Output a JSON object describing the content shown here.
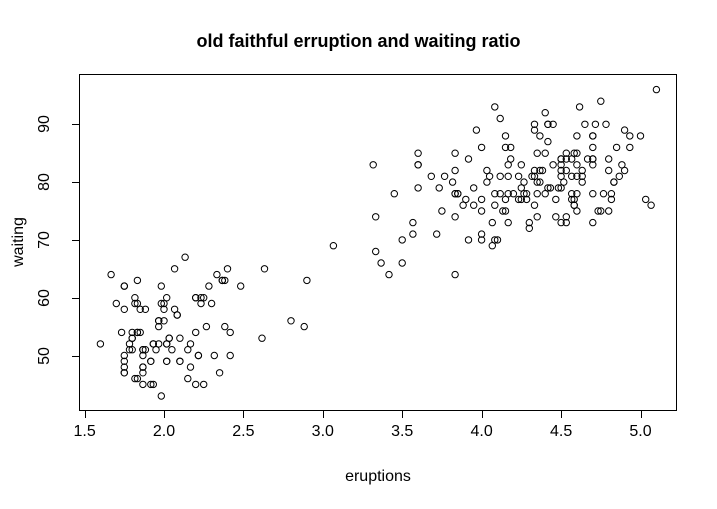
{
  "figure": {
    "background": "#ffffff",
    "foreground": "#000000"
  },
  "chart_data": {
    "type": "scatter",
    "title": "old faithful erruption and waiting ratio",
    "xlabel": "eruptions",
    "ylabel": "waiting",
    "x_ticks": [
      1.5,
      2.0,
      2.5,
      3.0,
      3.5,
      4.0,
      4.5,
      5.0
    ],
    "x_tick_labels": [
      "1.5",
      "2.0",
      "2.5",
      "3.0",
      "3.5",
      "4.0",
      "4.5",
      "5.0"
    ],
    "y_ticks": [
      50,
      60,
      70,
      80,
      90
    ],
    "y_tick_labels": [
      "50",
      "60",
      "70",
      "80",
      "90"
    ],
    "xlim": [
      1.465,
      5.23
    ],
    "ylim": [
      40.4,
      98.7
    ],
    "grid": false,
    "legend": null,
    "marker": {
      "shape": "open-circle",
      "radius_px": 3.2,
      "stroke_px": 1,
      "color": "#000000"
    },
    "points": [
      [
        3.6,
        79
      ],
      [
        1.8,
        54
      ],
      [
        3.333,
        74
      ],
      [
        2.283,
        62
      ],
      [
        4.533,
        85
      ],
      [
        2.883,
        55
      ],
      [
        4.7,
        88
      ],
      [
        3.6,
        85
      ],
      [
        1.95,
        51
      ],
      [
        4.35,
        85
      ],
      [
        1.833,
        54
      ],
      [
        3.917,
        84
      ],
      [
        4.2,
        78
      ],
      [
        1.75,
        47
      ],
      [
        4.7,
        83
      ],
      [
        2.167,
        52
      ],
      [
        1.75,
        62
      ],
      [
        4.8,
        84
      ],
      [
        1.6,
        52
      ],
      [
        4.25,
        79
      ],
      [
        1.8,
        51
      ],
      [
        1.75,
        47
      ],
      [
        3.45,
        78
      ],
      [
        3.067,
        69
      ],
      [
        4.533,
        74
      ],
      [
        3.6,
        83
      ],
      [
        1.967,
        55
      ],
      [
        4.083,
        76
      ],
      [
        3.85,
        78
      ],
      [
        4.433,
        79
      ],
      [
        4.3,
        73
      ],
      [
        4.467,
        77
      ],
      [
        3.367,
        66
      ],
      [
        4.033,
        80
      ],
      [
        3.833,
        74
      ],
      [
        2.017,
        52
      ],
      [
        1.867,
        48
      ],
      [
        4.833,
        80
      ],
      [
        1.833,
        59
      ],
      [
        4.783,
        90
      ],
      [
        4.35,
        80
      ],
      [
        1.883,
        58
      ],
      [
        4.567,
        84
      ],
      [
        1.75,
        58
      ],
      [
        4.533,
        73
      ],
      [
        3.317,
        83
      ],
      [
        3.833,
        64
      ],
      [
        2.1,
        53
      ],
      [
        4.633,
        82
      ],
      [
        2.0,
        59
      ],
      [
        4.8,
        75
      ],
      [
        4.716,
        90
      ],
      [
        1.833,
        54
      ],
      [
        4.833,
        80
      ],
      [
        1.733,
        54
      ],
      [
        4.883,
        83
      ],
      [
        3.717,
        71
      ],
      [
        1.667,
        64
      ],
      [
        4.567,
        77
      ],
      [
        4.317,
        81
      ],
      [
        2.233,
        59
      ],
      [
        4.5,
        84
      ],
      [
        1.75,
        48
      ],
      [
        4.8,
        82
      ],
      [
        1.817,
        60
      ],
      [
        4.4,
        92
      ],
      [
        4.167,
        78
      ],
      [
        4.7,
        78
      ],
      [
        2.067,
        65
      ],
      [
        4.7,
        73
      ],
      [
        4.033,
        82
      ],
      [
        1.967,
        56
      ],
      [
        4.5,
        79
      ],
      [
        4.0,
        71
      ],
      [
        1.983,
        62
      ],
      [
        5.067,
        76
      ],
      [
        2.017,
        60
      ],
      [
        4.567,
        78
      ],
      [
        3.883,
        76
      ],
      [
        3.6,
        83
      ],
      [
        4.133,
        75
      ],
      [
        4.333,
        82
      ],
      [
        4.1,
        70
      ],
      [
        2.633,
        65
      ],
      [
        4.067,
        73
      ],
      [
        4.933,
        88
      ],
      [
        3.95,
        76
      ],
      [
        4.517,
        80
      ],
      [
        2.167,
        48
      ],
      [
        4.0,
        86
      ],
      [
        2.2,
        60
      ],
      [
        4.333,
        90
      ],
      [
        1.867,
        50
      ],
      [
        4.817,
        78
      ],
      [
        1.833,
        63
      ],
      [
        4.3,
        72
      ],
      [
        4.667,
        84
      ],
      [
        3.75,
        75
      ],
      [
        1.867,
        51
      ],
      [
        4.9,
        82
      ],
      [
        2.483,
        62
      ],
      [
        4.367,
        88
      ],
      [
        2.1,
        49
      ],
      [
        4.5,
        83
      ],
      [
        4.05,
        81
      ],
      [
        1.867,
        47
      ],
      [
        4.7,
        84
      ],
      [
        1.783,
        52
      ],
      [
        4.85,
        86
      ],
      [
        3.683,
        81
      ],
      [
        4.733,
        75
      ],
      [
        2.3,
        59
      ],
      [
        4.9,
        89
      ],
      [
        4.417,
        79
      ],
      [
        1.7,
        59
      ],
      [
        4.633,
        81
      ],
      [
        2.317,
        50
      ],
      [
        4.6,
        85
      ],
      [
        1.817,
        59
      ],
      [
        4.417,
        87
      ],
      [
        2.617,
        53
      ],
      [
        4.067,
        69
      ],
      [
        4.25,
        77
      ],
      [
        1.967,
        56
      ],
      [
        4.6,
        88
      ],
      [
        3.767,
        81
      ],
      [
        1.917,
        45
      ],
      [
        4.5,
        82
      ],
      [
        2.267,
        55
      ],
      [
        4.65,
        90
      ],
      [
        1.867,
        45
      ],
      [
        4.167,
        83
      ],
      [
        2.8,
        56
      ],
      [
        4.333,
        89
      ],
      [
        1.833,
        46
      ],
      [
        4.383,
        82
      ],
      [
        1.883,
        51
      ],
      [
        4.933,
        86
      ],
      [
        2.033,
        53
      ],
      [
        3.733,
        79
      ],
      [
        4.233,
        81
      ],
      [
        2.233,
        60
      ],
      [
        4.533,
        82
      ],
      [
        4.817,
        77
      ],
      [
        4.333,
        76
      ],
      [
        1.983,
        59
      ],
      [
        4.633,
        80
      ],
      [
        2.017,
        49
      ],
      [
        5.1,
        96
      ],
      [
        1.8,
        53
      ],
      [
        5.033,
        77
      ],
      [
        4.0,
        77
      ],
      [
        2.4,
        65
      ],
      [
        4.6,
        81
      ],
      [
        3.567,
        71
      ],
      [
        4.0,
        70
      ],
      [
        4.5,
        81
      ],
      [
        4.083,
        93
      ],
      [
        1.8,
        53
      ],
      [
        3.967,
        89
      ],
      [
        2.2,
        45
      ],
      [
        4.15,
        86
      ],
      [
        2.0,
        58
      ],
      [
        3.833,
        78
      ],
      [
        3.5,
        66
      ],
      [
        4.583,
        76
      ],
      [
        2.367,
        63
      ],
      [
        5.0,
        88
      ],
      [
        1.933,
        52
      ],
      [
        4.617,
        93
      ],
      [
        1.917,
        49
      ],
      [
        2.083,
        57
      ],
      [
        4.583,
        77
      ],
      [
        3.333,
        68
      ],
      [
        4.167,
        81
      ],
      [
        4.333,
        81
      ],
      [
        4.167,
        73
      ],
      [
        2.217,
        50
      ],
      [
        4.4,
        85
      ],
      [
        1.75,
        62
      ],
      [
        4.867,
        81
      ],
      [
        1.75,
        49
      ],
      [
        4.183,
        84
      ],
      [
        2.25,
        45
      ],
      [
        4.7,
        88
      ],
      [
        2.15,
        51
      ],
      [
        4.35,
        78
      ],
      [
        2.383,
        55
      ],
      [
        4.7,
        86
      ],
      [
        1.867,
        48
      ],
      [
        3.833,
        85
      ],
      [
        3.417,
        64
      ],
      [
        4.233,
        77
      ],
      [
        2.017,
        52
      ],
      [
        4.4,
        78
      ],
      [
        1.85,
        54
      ],
      [
        4.417,
        90
      ],
      [
        2.2,
        60
      ],
      [
        4.15,
        88
      ],
      [
        1.967,
        52
      ],
      [
        4.45,
        90
      ],
      [
        2.1,
        49
      ],
      [
        4.75,
        94
      ],
      [
        2.05,
        51
      ],
      [
        4.117,
        91
      ],
      [
        2.35,
        47
      ],
      [
        4.483,
        79
      ],
      [
        2.033,
        53
      ],
      [
        4.283,
        77
      ],
      [
        3.95,
        79
      ],
      [
        2.333,
        64
      ],
      [
        4.15,
        75
      ],
      [
        2.9,
        63
      ],
      [
        4.583,
        85
      ],
      [
        3.833,
        82
      ],
      [
        2.083,
        57
      ],
      [
        4.367,
        82
      ],
      [
        2.133,
        67
      ],
      [
        4.35,
        74
      ],
      [
        2.2,
        54
      ],
      [
        4.45,
        83
      ],
      [
        3.567,
        73
      ],
      [
        4.5,
        73
      ],
      [
        4.15,
        77
      ],
      [
        3.817,
        80
      ],
      [
        3.917,
        70
      ],
      [
        4.567,
        81
      ],
      [
        2.0,
        56
      ],
      [
        4.267,
        78
      ],
      [
        4.767,
        78
      ],
      [
        4.533,
        84
      ],
      [
        1.85,
        58
      ],
      [
        4.25,
        83
      ],
      [
        1.983,
        43
      ],
      [
        2.25,
        60
      ],
      [
        4.75,
        75
      ],
      [
        4.117,
        81
      ],
      [
        2.15,
        46
      ],
      [
        4.417,
        90
      ],
      [
        1.817,
        46
      ],
      [
        2.017,
        49
      ],
      [
        2.417,
        54
      ],
      [
        4.6,
        83
      ],
      [
        2.067,
        58
      ],
      [
        4.083,
        78
      ],
      [
        1.917,
        49
      ],
      [
        4.267,
        80
      ],
      [
        1.75,
        50
      ],
      [
        4.0,
        75
      ],
      [
        4.117,
        78
      ],
      [
        3.9,
        77
      ],
      [
        4.283,
        78
      ],
      [
        2.417,
        50
      ],
      [
        4.183,
        86
      ],
      [
        2.217,
        50
      ],
      [
        4.6,
        75
      ],
      [
        1.783,
        51
      ],
      [
        4.367,
        80
      ],
      [
        3.85,
        78
      ],
      [
        1.933,
        45
      ],
      [
        4.5,
        84
      ],
      [
        2.383,
        63
      ],
      [
        4.7,
        84
      ],
      [
        1.867,
        51
      ],
      [
        3.833,
        78
      ],
      [
        3.5,
        70
      ],
      [
        4.583,
        76
      ],
      [
        2.367,
        63
      ],
      [
        4.6,
        78
      ],
      [
        1.933,
        52
      ],
      [
        4.083,
        70
      ],
      [
        4.467,
        74
      ]
    ]
  }
}
